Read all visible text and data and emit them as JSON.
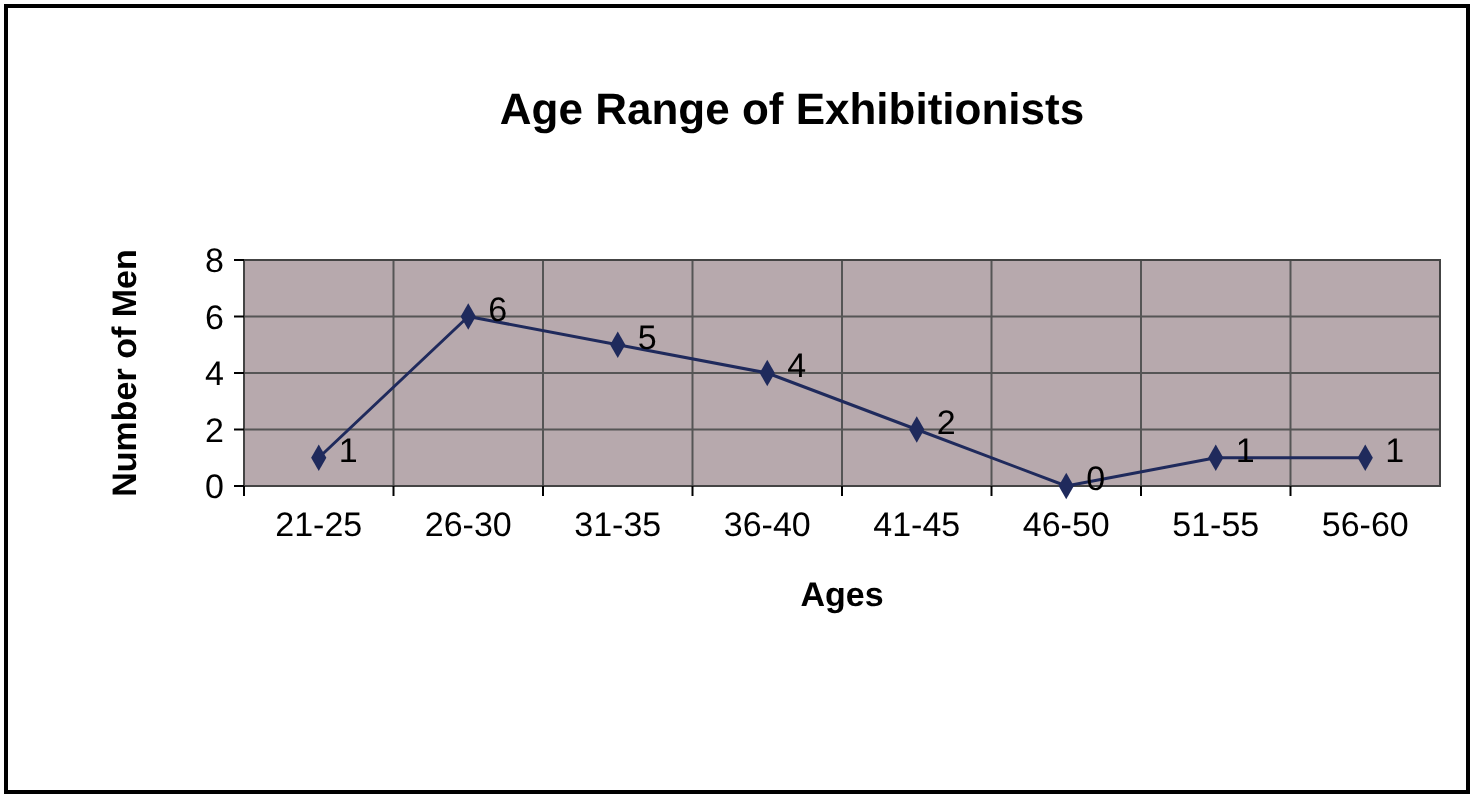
{
  "chart_data": {
    "type": "line",
    "title": "Age Range of Exhibitionists",
    "xlabel": "Ages",
    "ylabel": "Number of Men",
    "categories": [
      "21-25",
      "26-30",
      "31-35",
      "36-40",
      "41-45",
      "46-50",
      "51-55",
      "56-60"
    ],
    "series": [
      {
        "color": "#1f2a5c",
        "values": [
          1,
          6,
          5,
          4,
          2,
          0,
          1,
          1
        ]
      }
    ],
    "ylim": [
      0,
      8
    ],
    "yticks": [
      0,
      2,
      4,
      6,
      8
    ],
    "grid": true,
    "marker": "diamond",
    "data_labels": true
  }
}
